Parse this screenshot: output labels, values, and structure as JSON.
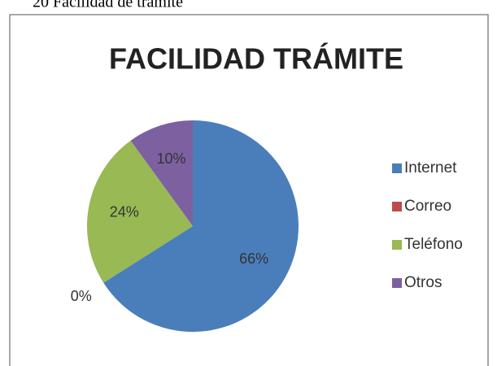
{
  "caption": "20 Facilidad de trámite",
  "chart_data": {
    "type": "pie",
    "title": "FACILIDAD TRÁMITE",
    "categories": [
      "Internet",
      "Correo",
      "Teléfono",
      "Otros"
    ],
    "values": [
      66,
      0,
      24,
      10
    ],
    "value_labels": [
      "66%",
      "0%",
      "24%",
      "10%"
    ],
    "colors": [
      "#4a7ebb",
      "#be4b48",
      "#98b954",
      "#7d60a0"
    ],
    "legend": "right"
  }
}
